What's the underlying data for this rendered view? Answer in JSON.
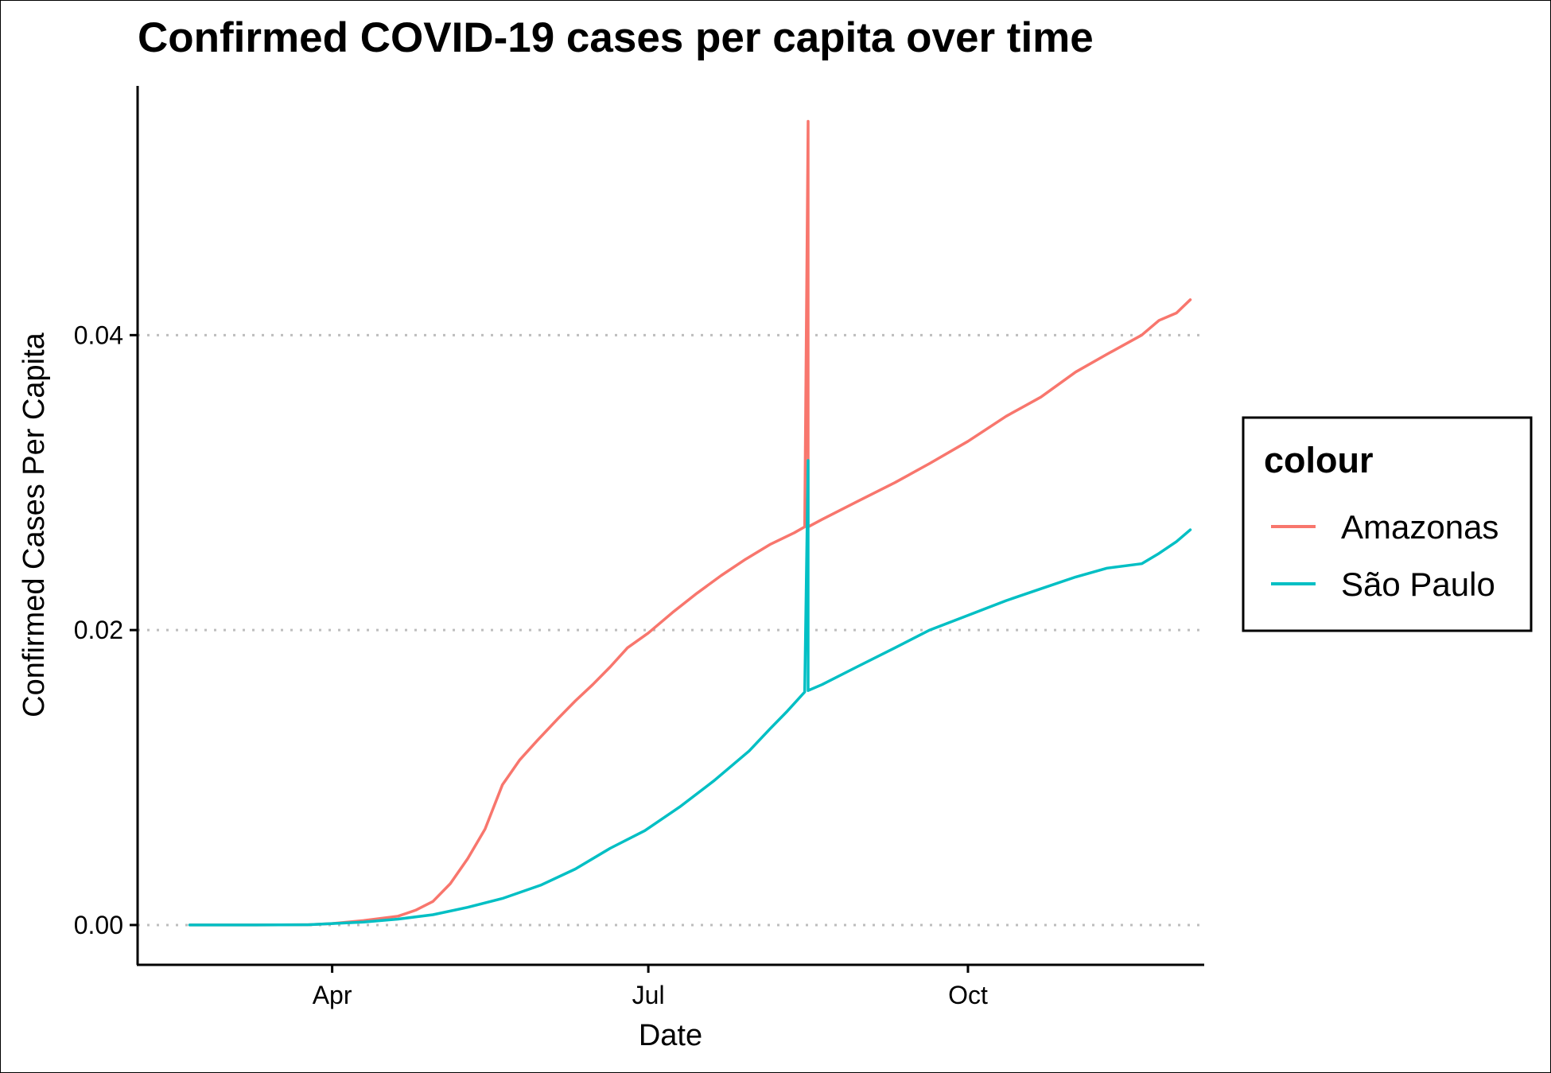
{
  "chart_data": {
    "type": "line",
    "title": "Confirmed COVID-19 cases per capita over time",
    "xlabel": "Date",
    "ylabel": "Confirmed Cases Per Capita",
    "x_ticks": [
      {
        "date": "2020-04-01",
        "label": "Apr"
      },
      {
        "date": "2020-07-01",
        "label": "Jul"
      },
      {
        "date": "2020-10-01",
        "label": "Oct"
      }
    ],
    "y_ticks": [
      {
        "value": 0.0,
        "label": "0.00"
      },
      {
        "value": 0.02,
        "label": "0.02"
      },
      {
        "value": 0.04,
        "label": "0.04"
      }
    ],
    "xlim": [
      "2020-02-05",
      "2020-12-08"
    ],
    "ylim": [
      -0.0027,
      0.0569
    ],
    "grid": "major y, dotted",
    "legend": {
      "title": "colour",
      "position": "right"
    },
    "series": [
      {
        "name": "Amazonas",
        "color": "#F8766D",
        "points": [
          [
            "2020-02-20",
            0.0
          ],
          [
            "2020-03-10",
            0.0
          ],
          [
            "2020-03-25",
            2e-05
          ],
          [
            "2020-04-01",
            0.0001
          ],
          [
            "2020-04-10",
            0.0003
          ],
          [
            "2020-04-20",
            0.0006
          ],
          [
            "2020-04-25",
            0.001
          ],
          [
            "2020-04-30",
            0.0016
          ],
          [
            "2020-05-05",
            0.0028
          ],
          [
            "2020-05-10",
            0.0045
          ],
          [
            "2020-05-15",
            0.0065
          ],
          [
            "2020-05-20",
            0.0095
          ],
          [
            "2020-05-25",
            0.0112
          ],
          [
            "2020-05-30",
            0.0125
          ],
          [
            "2020-06-05",
            0.014
          ],
          [
            "2020-06-10",
            0.0152
          ],
          [
            "2020-06-15",
            0.0163
          ],
          [
            "2020-06-20",
            0.0175
          ],
          [
            "2020-06-25",
            0.0188
          ],
          [
            "2020-07-01",
            0.0198
          ],
          [
            "2020-07-08",
            0.0212
          ],
          [
            "2020-07-15",
            0.0225
          ],
          [
            "2020-07-22",
            0.0237
          ],
          [
            "2020-07-29",
            0.0248
          ],
          [
            "2020-08-05",
            0.0258
          ],
          [
            "2020-08-12",
            0.0266
          ],
          [
            "2020-08-15",
            0.027
          ],
          [
            "2020-08-16",
            0.0545
          ],
          [
            "2020-08-16",
            0.027
          ],
          [
            "2020-08-20",
            0.0275
          ],
          [
            "2020-08-30",
            0.0287
          ],
          [
            "2020-09-10",
            0.03
          ],
          [
            "2020-09-20",
            0.0313
          ],
          [
            "2020-10-01",
            0.0328
          ],
          [
            "2020-10-12",
            0.0345
          ],
          [
            "2020-10-22",
            0.0358
          ],
          [
            "2020-11-01",
            0.0375
          ],
          [
            "2020-11-10",
            0.0387
          ],
          [
            "2020-11-20",
            0.04
          ],
          [
            "2020-11-25",
            0.041
          ],
          [
            "2020-11-30",
            0.0415
          ],
          [
            "2020-12-04",
            0.0424
          ]
        ]
      },
      {
        "name": "São Paulo",
        "color": "#00BFC4",
        "points": [
          [
            "2020-02-20",
            0.0
          ],
          [
            "2020-03-10",
            0.0
          ],
          [
            "2020-03-25",
            2e-05
          ],
          [
            "2020-04-01",
            0.0001
          ],
          [
            "2020-04-10",
            0.0002
          ],
          [
            "2020-04-20",
            0.0004
          ],
          [
            "2020-04-30",
            0.0007
          ],
          [
            "2020-05-10",
            0.0012
          ],
          [
            "2020-05-20",
            0.0018
          ],
          [
            "2020-05-31",
            0.0027
          ],
          [
            "2020-06-10",
            0.0038
          ],
          [
            "2020-06-20",
            0.0052
          ],
          [
            "2020-06-30",
            0.0064
          ],
          [
            "2020-07-10",
            0.008
          ],
          [
            "2020-07-20",
            0.0098
          ],
          [
            "2020-07-30",
            0.0118
          ],
          [
            "2020-08-05",
            0.0133
          ],
          [
            "2020-08-10",
            0.0145
          ],
          [
            "2020-08-15",
            0.0158
          ],
          [
            "2020-08-16",
            0.0315
          ],
          [
            "2020-08-16",
            0.0159
          ],
          [
            "2020-08-20",
            0.0163
          ],
          [
            "2020-08-30",
            0.0175
          ],
          [
            "2020-09-10",
            0.0188
          ],
          [
            "2020-09-20",
            0.02
          ],
          [
            "2020-10-01",
            0.021
          ],
          [
            "2020-10-12",
            0.022
          ],
          [
            "2020-10-22",
            0.0228
          ],
          [
            "2020-11-01",
            0.0236
          ],
          [
            "2020-11-10",
            0.0242
          ],
          [
            "2020-11-20",
            0.0245
          ],
          [
            "2020-11-25",
            0.0252
          ],
          [
            "2020-11-30",
            0.026
          ],
          [
            "2020-12-04",
            0.0268
          ]
        ]
      }
    ]
  }
}
